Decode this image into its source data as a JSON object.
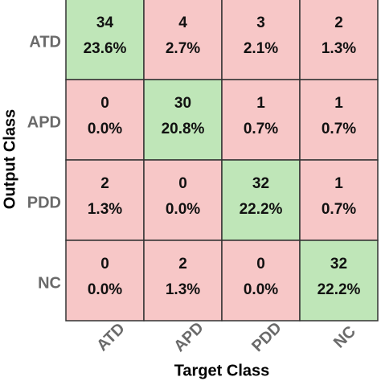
{
  "chart_data": {
    "type": "confusion-matrix",
    "x_label": "Target Class",
    "y_label": "Output Class",
    "x_categories": [
      "ATD",
      "APD",
      "PDD",
      "NC"
    ],
    "y_categories": [
      "ATD",
      "APD",
      "PDD",
      "NC"
    ],
    "counts": [
      [
        34,
        4,
        3,
        2
      ],
      [
        0,
        30,
        1,
        1
      ],
      [
        2,
        0,
        32,
        1
      ],
      [
        0,
        2,
        0,
        32
      ]
    ],
    "percents": [
      [
        23.6,
        2.7,
        2.1,
        1.3
      ],
      [
        0.0,
        20.8,
        0.7,
        0.7
      ],
      [
        1.3,
        0.0,
        22.2,
        0.7
      ],
      [
        0.0,
        1.3,
        0.0,
        22.2
      ]
    ],
    "percent_labels": [
      [
        "23.6%",
        "2.7%",
        "2.1%",
        "1.3%"
      ],
      [
        "0.0%",
        "20.8%",
        "0.7%",
        "0.7%"
      ],
      [
        "1.3%",
        "0.0%",
        "22.2%",
        "0.7%"
      ],
      [
        "0.0%",
        "1.3%",
        "0.0%",
        "22.2%"
      ]
    ],
    "diagonal_color": "#bfe6b8",
    "off_diagonal_color": "#f7c7c7"
  }
}
